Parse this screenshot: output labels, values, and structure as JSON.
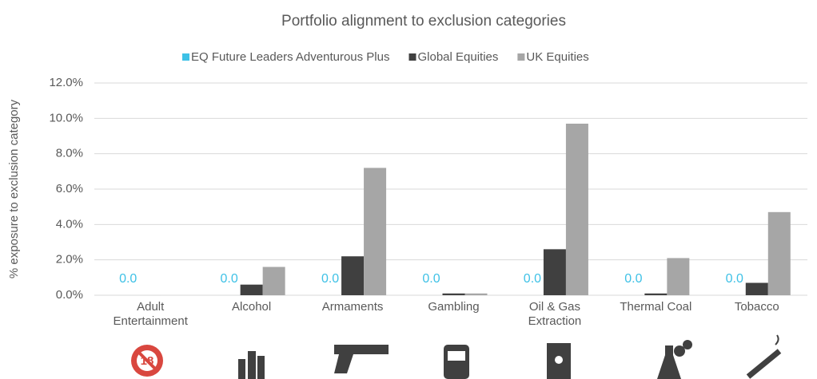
{
  "chart_data": {
    "type": "bar",
    "title": "Portfolio alignment to exclusion categories",
    "y_label": "% exposure to exclusion category",
    "categories": [
      "Adult Entertainment",
      "Alcohol",
      "Armaments",
      "Gambling",
      "Oil & Gas Extraction",
      "Thermal Coal",
      "Tobacco"
    ],
    "series": [
      {
        "name": "EQ Future Leaders Adventurous Plus",
        "color": "#3ec1e6",
        "values": [
          0,
          0,
          0,
          0,
          0,
          0,
          0
        ],
        "value_labels": [
          "0.0",
          "0.0",
          "0.0",
          "0.0",
          "0.0",
          "0.0",
          "0.0"
        ]
      },
      {
        "name": "Global Equities",
        "color": "#404040",
        "values": [
          0,
          0.6,
          2.2,
          0.1,
          2.6,
          0.1,
          0.7
        ]
      },
      {
        "name": "UK Equities",
        "color": "#a6a6a6",
        "values": [
          0,
          1.6,
          7.2,
          0.1,
          9.7,
          2.1,
          4.7
        ]
      }
    ],
    "ylim": [
      0,
      12
    ],
    "yticks": [
      {
        "value": 0,
        "label": "0.0%"
      },
      {
        "value": 2,
        "label": "2.0%"
      },
      {
        "value": 4,
        "label": "4.0%"
      },
      {
        "value": 6,
        "label": "6.0%"
      },
      {
        "value": 8,
        "label": "8.0%"
      },
      {
        "value": 10,
        "label": "10.0%"
      },
      {
        "value": 12,
        "label": "12.0%"
      }
    ],
    "grid": true,
    "legend": "top"
  }
}
